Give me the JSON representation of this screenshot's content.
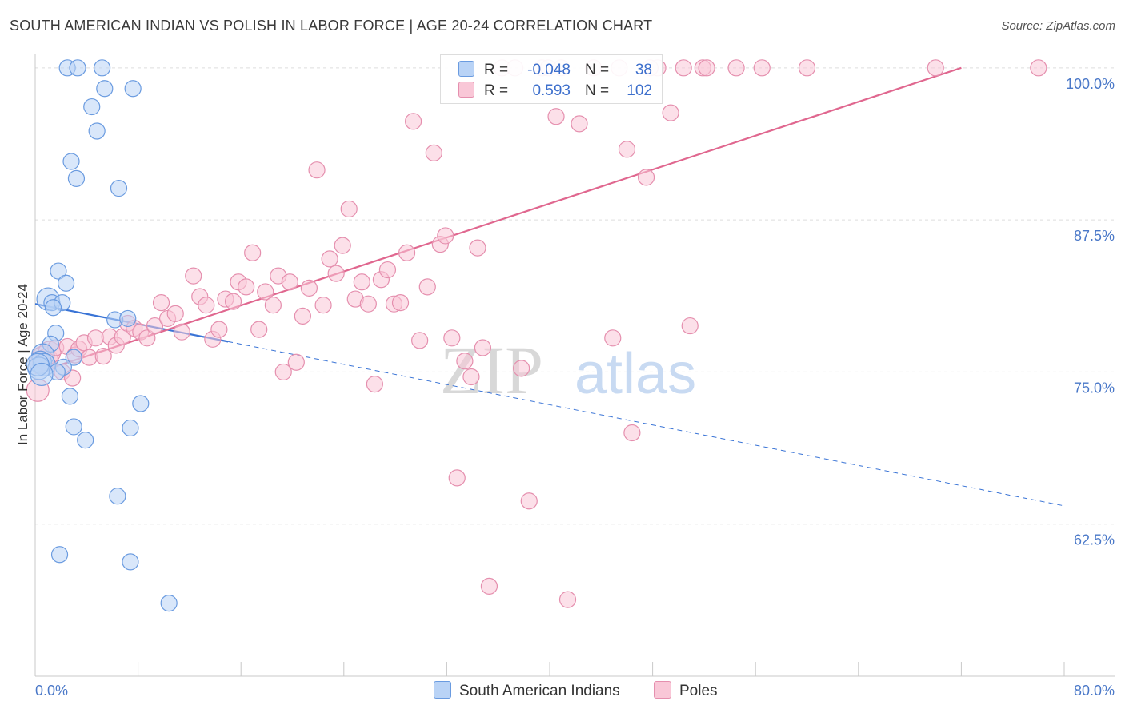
{
  "title": "SOUTH AMERICAN INDIAN VS POLISH IN LABOR FORCE | AGE 20-24 CORRELATION CHART",
  "source": "Source: ZipAtlas.com",
  "watermark": {
    "zip": "ZIP",
    "atlas": "atlas"
  },
  "legend": {
    "r_label": "R =",
    "n_label": "N =",
    "rows": [
      {
        "name": "South American Indians",
        "r": "-0.048",
        "n": "38",
        "fill": "#b9d3f6",
        "stroke": "#6a9be0"
      },
      {
        "name": "Poles",
        "r": "0.593",
        "n": "102",
        "fill": "#f9c7d7",
        "stroke": "#e58fae"
      }
    ]
  },
  "chart_data": {
    "type": "scatter",
    "xlabel": "",
    "ylabel": "In Labor Force | Age 20-24",
    "xlim": [
      0,
      80
    ],
    "ylim": [
      50,
      101.5
    ],
    "x_tick_labels": [
      "0.0%",
      "80.0%"
    ],
    "y_ticks": [
      62.5,
      75.0,
      87.5,
      100.0
    ],
    "y_tick_labels": [
      "62.5%",
      "75.0%",
      "87.5%",
      "100.0%"
    ],
    "grid": true,
    "series": [
      {
        "name": "South American Indians",
        "color": "#6a9be0",
        "fill": "#b9d3f6",
        "trend": {
          "x0": 0.0,
          "y0": 80.6,
          "x1": 15.0,
          "y1": 77.5,
          "x_end": 80.0,
          "y_end": 64.0,
          "dashed_after": 15.0,
          "line_color": "#3a74d6"
        },
        "points": [
          [
            2.5,
            100.0
          ],
          [
            3.3,
            100.0
          ],
          [
            5.2,
            100.0
          ],
          [
            5.4,
            98.3
          ],
          [
            7.6,
            98.3
          ],
          [
            4.4,
            96.8
          ],
          [
            4.8,
            94.8
          ],
          [
            2.8,
            92.3
          ],
          [
            3.2,
            90.9
          ],
          [
            6.5,
            90.1
          ],
          [
            1.8,
            83.3
          ],
          [
            2.4,
            82.3
          ],
          [
            1.0,
            81.0
          ],
          [
            1.3,
            80.7
          ],
          [
            2.1,
            80.7
          ],
          [
            1.4,
            80.3
          ],
          [
            6.2,
            79.3
          ],
          [
            7.2,
            79.4
          ],
          [
            1.6,
            78.2
          ],
          [
            1.2,
            77.3
          ],
          [
            0.6,
            76.4
          ],
          [
            3.0,
            76.2
          ],
          [
            0.4,
            75.8
          ],
          [
            0.7,
            75.6
          ],
          [
            0.3,
            75.3
          ],
          [
            2.2,
            75.4
          ],
          [
            1.7,
            75.0
          ],
          [
            2.7,
            73.0
          ],
          [
            8.2,
            72.4
          ],
          [
            3.0,
            70.5
          ],
          [
            7.4,
            70.4
          ],
          [
            3.9,
            69.4
          ],
          [
            6.4,
            64.8
          ],
          [
            1.9,
            60.0
          ],
          [
            7.4,
            59.4
          ],
          [
            10.4,
            56.0
          ],
          [
            0.2,
            75.6
          ],
          [
            0.5,
            74.8
          ]
        ]
      },
      {
        "name": "Poles",
        "color": "#e58fae",
        "fill": "#f9c7d7",
        "trend": {
          "x0": 0.0,
          "y0": 74.9,
          "x1": 72.0,
          "y1": 100.0,
          "line_color": "#e0678f"
        },
        "points": [
          [
            0.2,
            73.5
          ],
          [
            0.4,
            75.8
          ],
          [
            0.6,
            76.2
          ],
          [
            0.9,
            76.0
          ],
          [
            1.1,
            76.6
          ],
          [
            1.6,
            77.0
          ],
          [
            2.1,
            75.0
          ],
          [
            2.5,
            77.1
          ],
          [
            3.1,
            76.4
          ],
          [
            3.4,
            76.9
          ],
          [
            3.8,
            77.4
          ],
          [
            4.2,
            76.2
          ],
          [
            4.7,
            77.8
          ],
          [
            5.3,
            76.3
          ],
          [
            5.8,
            77.9
          ],
          [
            6.3,
            77.2
          ],
          [
            6.8,
            77.9
          ],
          [
            7.2,
            79.0
          ],
          [
            7.7,
            78.6
          ],
          [
            8.2,
            78.3
          ],
          [
            8.7,
            77.8
          ],
          [
            9.3,
            78.8
          ],
          [
            9.8,
            80.7
          ],
          [
            10.3,
            79.4
          ],
          [
            10.9,
            79.8
          ],
          [
            11.4,
            78.3
          ],
          [
            12.3,
            82.9
          ],
          [
            12.8,
            81.2
          ],
          [
            13.3,
            80.5
          ],
          [
            13.8,
            77.7
          ],
          [
            14.3,
            78.5
          ],
          [
            14.8,
            81.0
          ],
          [
            15.4,
            80.8
          ],
          [
            15.8,
            82.4
          ],
          [
            16.4,
            82.0
          ],
          [
            16.9,
            84.8
          ],
          [
            17.4,
            78.5
          ],
          [
            17.9,
            81.6
          ],
          [
            18.5,
            80.5
          ],
          [
            18.9,
            82.9
          ],
          [
            19.3,
            75.0
          ],
          [
            19.8,
            82.4
          ],
          [
            20.3,
            75.8
          ],
          [
            20.8,
            79.6
          ],
          [
            21.3,
            81.9
          ],
          [
            21.9,
            91.6
          ],
          [
            22.4,
            80.5
          ],
          [
            22.9,
            84.3
          ],
          [
            23.4,
            83.1
          ],
          [
            23.9,
            85.4
          ],
          [
            24.4,
            88.4
          ],
          [
            24.9,
            81.0
          ],
          [
            25.4,
            82.4
          ],
          [
            25.9,
            80.6
          ],
          [
            26.4,
            74.0
          ],
          [
            26.9,
            82.6
          ],
          [
            27.4,
            83.4
          ],
          [
            27.9,
            80.6
          ],
          [
            28.4,
            80.7
          ],
          [
            28.9,
            84.8
          ],
          [
            29.4,
            95.6
          ],
          [
            29.9,
            77.6
          ],
          [
            30.5,
            82.0
          ],
          [
            31.0,
            93.0
          ],
          [
            31.5,
            85.5
          ],
          [
            31.9,
            86.2
          ],
          [
            32.4,
            77.8
          ],
          [
            32.8,
            66.3
          ],
          [
            33.4,
            75.9
          ],
          [
            33.9,
            74.6
          ],
          [
            34.4,
            85.2
          ],
          [
            34.8,
            77.0
          ],
          [
            35.3,
            57.4
          ],
          [
            36.3,
            100.0
          ],
          [
            37.3,
            100.0
          ],
          [
            37.8,
            75.3
          ],
          [
            38.4,
            64.4
          ],
          [
            39.4,
            100.0
          ],
          [
            39.9,
            100.0
          ],
          [
            40.5,
            96.0
          ],
          [
            40.9,
            100.0
          ],
          [
            41.4,
            56.3
          ],
          [
            42.3,
            95.4
          ],
          [
            43.4,
            100.0
          ],
          [
            44.9,
            77.8
          ],
          [
            45.4,
            100.0
          ],
          [
            46.0,
            93.3
          ],
          [
            46.4,
            70.0
          ],
          [
            47.5,
            91.0
          ],
          [
            48.4,
            100.0
          ],
          [
            49.4,
            96.3
          ],
          [
            50.4,
            100.0
          ],
          [
            50.9,
            78.8
          ],
          [
            51.9,
            100.0
          ],
          [
            52.2,
            100.0
          ],
          [
            54.5,
            100.0
          ],
          [
            56.5,
            100.0
          ],
          [
            60.0,
            100.0
          ],
          [
            70.0,
            100.0
          ],
          [
            78.0,
            100.0
          ],
          [
            2.9,
            74.5
          ],
          [
            47.8,
            100.0
          ]
        ]
      }
    ]
  }
}
